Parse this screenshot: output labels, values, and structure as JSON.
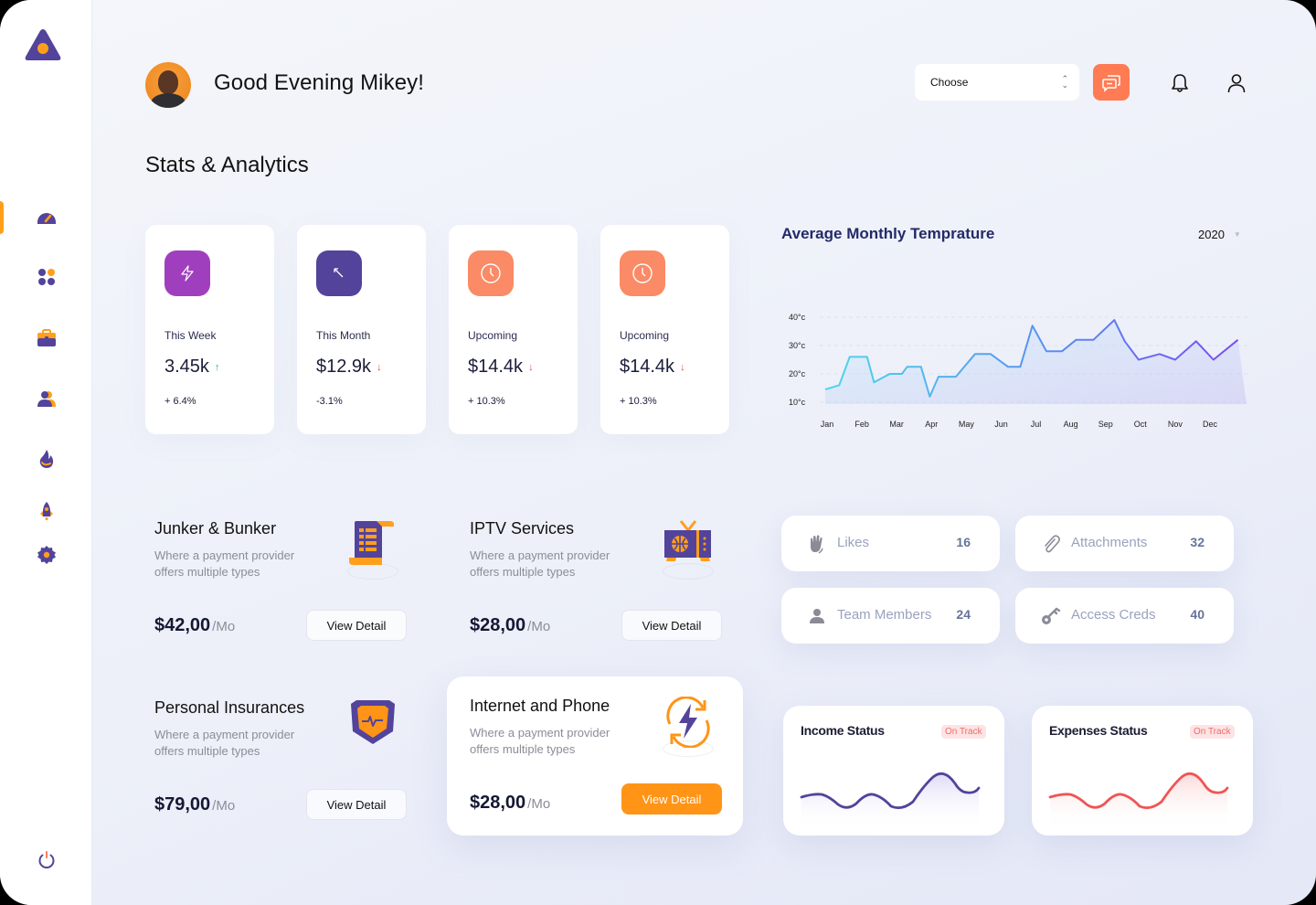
{
  "header": {
    "greeting": "Good Evening Mikey!",
    "section_title": "Stats & Analytics",
    "select": {
      "value": "Choose"
    },
    "icons": [
      "chat-icon",
      "bell-icon",
      "user-icon"
    ]
  },
  "sidebar": {
    "logo": "triangle-logo",
    "items": [
      {
        "name": "dashboard",
        "icon": "speedometer-icon",
        "active": true
      },
      {
        "name": "apps",
        "icon": "grid-icon"
      },
      {
        "name": "portfolio",
        "icon": "briefcase-icon"
      },
      {
        "name": "users",
        "icon": "users-icon"
      },
      {
        "name": "trending",
        "icon": "fire-icon"
      },
      {
        "name": "launch",
        "icon": "rocket-icon"
      },
      {
        "name": "settings",
        "icon": "gear-icon"
      }
    ],
    "logout_icon": "power-icon"
  },
  "stats": [
    {
      "label": "This Week",
      "value": "3.45k",
      "trend": "up",
      "arrow": "↑",
      "change": "+ 6.4%",
      "icon": "lightning-icon",
      "color": "#a03fbe"
    },
    {
      "label": "This Month",
      "value": "$12.9k",
      "trend": "down",
      "arrow": "↓",
      "change": "-3.1%",
      "icon": "arrow-up-left-icon",
      "color": "#53439a"
    },
    {
      "label": "Upcoming",
      "value": "$14.4k",
      "trend": "down",
      "arrow": "↓",
      "change": "+ 10.3%",
      "icon": "clock-icon",
      "color": "#fb8a66"
    },
    {
      "label": "Upcoming",
      "value": "$14.4k",
      "trend": "down",
      "arrow": "↓",
      "change": "+ 10.3%",
      "icon": "clock-icon",
      "color": "#fb8a66"
    }
  ],
  "temperature": {
    "title": "Average Monthly Temprature",
    "year": "2020"
  },
  "chart_data": {
    "type": "area",
    "title": "Average Monthly Temprature",
    "xlabel": "",
    "ylabel": "",
    "categories": [
      "Jan",
      "Feb",
      "Mar",
      "Apr",
      "May",
      "Jun",
      "Jul",
      "Aug",
      "Sep",
      "Oct",
      "Nov",
      "Dec"
    ],
    "y_ticks": [
      "10°c",
      "20°c",
      "30°c",
      "40°c"
    ],
    "ylim": [
      10,
      40
    ],
    "grid": true,
    "legend": "none",
    "series": [
      {
        "name": "Temperature 2020",
        "points": [
          [
            0.0,
            14.5
          ],
          [
            0.35,
            16
          ],
          [
            0.65,
            26
          ],
          [
            1.15,
            26
          ],
          [
            1.35,
            17
          ],
          [
            1.8,
            20
          ],
          [
            2.15,
            20
          ],
          [
            2.3,
            22.5
          ],
          [
            2.7,
            22.5
          ],
          [
            2.95,
            12
          ],
          [
            3.2,
            19
          ],
          [
            3.7,
            19
          ],
          [
            4.25,
            27
          ],
          [
            4.7,
            27
          ],
          [
            5.2,
            22.5
          ],
          [
            5.55,
            22.5
          ],
          [
            5.9,
            37
          ],
          [
            6.3,
            28
          ],
          [
            6.75,
            28
          ],
          [
            7.15,
            32
          ],
          [
            7.65,
            32
          ],
          [
            8.25,
            39
          ],
          [
            8.55,
            31.5
          ],
          [
            8.95,
            25
          ],
          [
            9.55,
            27
          ],
          [
            10.0,
            25
          ],
          [
            10.6,
            31.5
          ],
          [
            11.1,
            25
          ],
          [
            11.8,
            32
          ]
        ]
      }
    ]
  },
  "services": [
    {
      "title": "Junker & Bunker",
      "description": "Where a payment provider offers multiple types",
      "price": "$42,00",
      "period": "/Mo",
      "button": "View Detail",
      "icon": "receipt-scroll-icon"
    },
    {
      "title": "IPTV Services",
      "description": "Where a payment provider offers multiple types",
      "price": "$28,00",
      "period": "/Mo",
      "button": "View Detail",
      "icon": "tv-icon"
    },
    {
      "title": "Personal Insurances",
      "description": "Where a payment provider offers multiple types",
      "price": "$79,00",
      "period": "/Mo",
      "button": "View Detail",
      "icon": "shield-pulse-icon"
    },
    {
      "title": "Internet and Phone",
      "description": "Where a payment provider offers multiple types",
      "price": "$28,00",
      "period": "/Mo",
      "button": "View Detail",
      "icon": "energy-refresh-icon",
      "highlighted": true
    }
  ],
  "mini_stats": [
    {
      "label": "Likes",
      "count": "16",
      "icon": "hand-wave-icon"
    },
    {
      "label": "Attachments",
      "count": "32",
      "icon": "paperclip-icon"
    },
    {
      "label": "Team Members",
      "count": "24",
      "icon": "user-icon"
    },
    {
      "label": "Access Creds",
      "count": "40",
      "icon": "key-icon"
    }
  ],
  "status_cards": [
    {
      "title": "Income Status",
      "badge": "On Track",
      "line_color": "#53439a"
    },
    {
      "title": "Expenses Status",
      "badge": "On Track",
      "line_color": "#f05454"
    }
  ],
  "colors": {
    "accent_orange": "#ff9417",
    "accent_purple": "#53439a",
    "coral": "#ff7b54",
    "magenta": "#a03fbe"
  }
}
